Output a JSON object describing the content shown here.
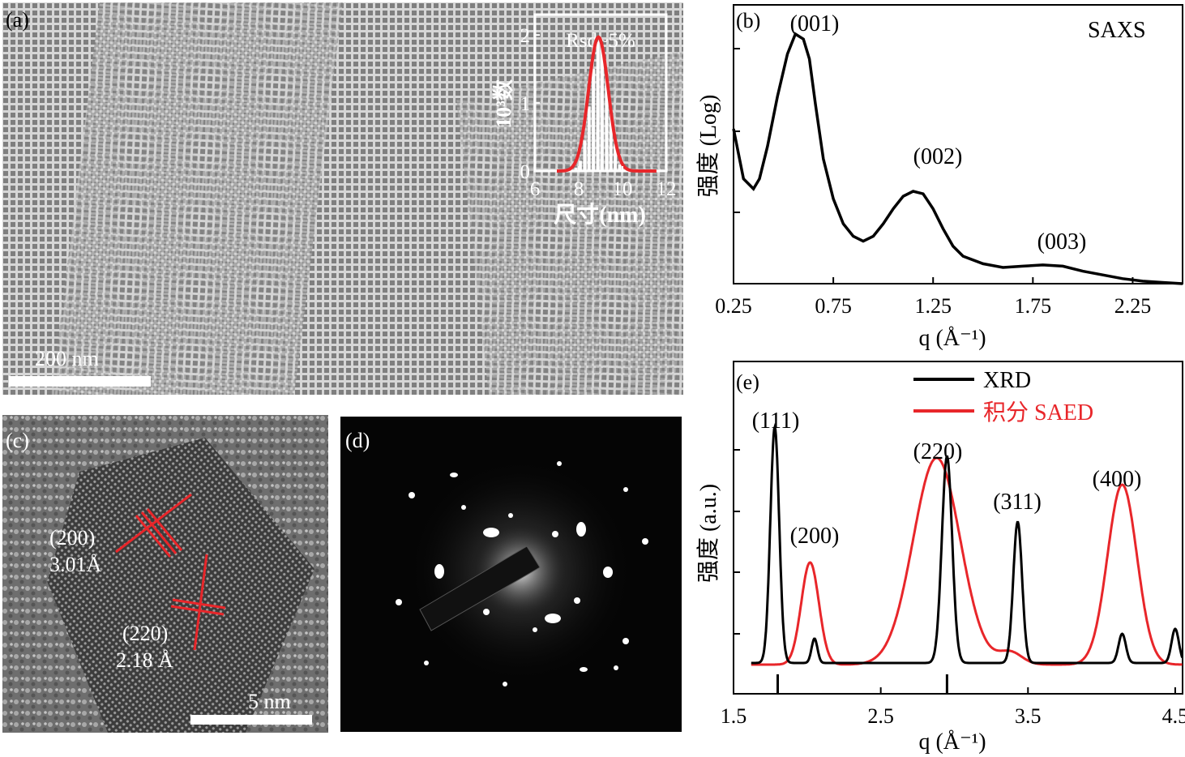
{
  "panels": {
    "a": {
      "label": "(a)",
      "scale_bar": "200 nm",
      "inset": {
        "annotation": "Rsd~5%",
        "ylabel": "10³数",
        "xlabel": "尺寸(nm)",
        "xticks": [
          "6",
          "8",
          "10",
          "12"
        ],
        "yticks": [
          "0",
          "1",
          "2"
        ]
      }
    },
    "b": {
      "label": "(b)",
      "title": "SAXS",
      "ylabel": "强度 (Log)",
      "xlabel": "q (Å⁻¹)",
      "xticks": [
        "0.25",
        "0.75",
        "1.25",
        "1.75",
        "2.25"
      ],
      "peaks": [
        "(001)",
        "(002)",
        "(003)"
      ]
    },
    "c": {
      "label": "(c)",
      "spacing_1_plane": "(200)",
      "spacing_1_value": "3.01Å",
      "spacing_2_plane": "(220)",
      "spacing_2_value": "2.18 Å",
      "scale_bar": "5 nm"
    },
    "d": {
      "label": "(d)"
    },
    "e": {
      "label": "(e)",
      "ylabel": "强度 (a.u.)",
      "xlabel": "q (Å⁻¹)",
      "xticks": [
        "1.5",
        "2.5",
        "3.5",
        "4.5"
      ],
      "legend": [
        "XRD",
        "积分 SAED"
      ],
      "peaks": [
        "(111)",
        "(200)",
        "(220)",
        "(311)",
        "(400)"
      ]
    }
  },
  "colors": {
    "xrd": "#000000",
    "saed": "#e8262a",
    "accent": "#e8262a"
  },
  "chart_data": [
    {
      "type": "bar",
      "panel": "a-inset",
      "xlabel": "尺寸(nm)",
      "ylabel": "10³数",
      "xlim": [
        6,
        12
      ],
      "ylim": [
        0,
        2.3
      ],
      "annotation": "Rsd~5%",
      "bins": [
        7.8,
        8.0,
        8.2,
        8.4,
        8.6,
        8.8,
        9.0,
        9.2,
        9.4,
        9.6,
        9.8
      ],
      "values": [
        0.05,
        0.15,
        0.45,
        0.95,
        1.5,
        1.9,
        1.85,
        1.4,
        0.85,
        0.4,
        0.1
      ],
      "fit": {
        "type": "gaussian",
        "center": 8.9,
        "sigma": 0.45,
        "amplitude": 1.97,
        "color": "#e8262a"
      }
    },
    {
      "type": "line",
      "panel": "b",
      "title": "SAXS",
      "xlabel": "q (Å⁻¹)",
      "ylabel": "强度 (Log)",
      "xlim": [
        0.25,
        2.5
      ],
      "scale": "log",
      "series": [
        {
          "color": "#000000",
          "x": [
            0.25,
            0.3,
            0.35,
            0.38,
            0.42,
            0.47,
            0.52,
            0.56,
            0.6,
            0.63,
            0.66,
            0.7,
            0.75,
            0.8,
            0.85,
            0.9,
            0.95,
            1.0,
            1.05,
            1.1,
            1.15,
            1.2,
            1.25,
            1.3,
            1.35,
            1.4,
            1.5,
            1.6,
            1.7,
            1.8,
            1.9,
            2.0,
            2.1,
            2.2,
            2.3,
            2.4,
            2.5
          ],
          "y": [
            0.62,
            0.42,
            0.38,
            0.42,
            0.55,
            0.75,
            0.92,
            1.0,
            0.98,
            0.9,
            0.72,
            0.5,
            0.34,
            0.24,
            0.19,
            0.17,
            0.19,
            0.24,
            0.3,
            0.35,
            0.37,
            0.36,
            0.3,
            0.22,
            0.15,
            0.11,
            0.08,
            0.065,
            0.07,
            0.075,
            0.07,
            0.05,
            0.035,
            0.02,
            0.01,
            0.005,
            0.0
          ]
        }
      ],
      "peaks": [
        {
          "label": "(001)",
          "q": 0.63
        },
        {
          "label": "(002)",
          "q": 1.18
        },
        {
          "label": "(003)",
          "q": 1.8
        }
      ]
    },
    {
      "type": "line",
      "panel": "e",
      "xlabel": "q (Å⁻¹)",
      "ylabel": "强度 (a.u.)",
      "xlim": [
        1.5,
        4.55
      ],
      "series": [
        {
          "name": "XRD",
          "color": "#000000",
          "peaks": [
            {
              "q": 1.78,
              "height": 0.97,
              "width": 0.03
            },
            {
              "q": 2.05,
              "height": 0.1,
              "width": 0.02
            },
            {
              "q": 2.95,
              "height": 0.85,
              "width": 0.035
            },
            {
              "q": 3.43,
              "height": 0.58,
              "width": 0.03
            },
            {
              "q": 4.14,
              "height": 0.12,
              "width": 0.025
            },
            {
              "q": 4.5,
              "height": 0.14,
              "width": 0.025
            }
          ]
        },
        {
          "name": "积分 SAED",
          "color": "#e8262a",
          "peaks": [
            {
              "q": 2.02,
              "height": 0.42,
              "width": 0.06
            },
            {
              "q": 2.88,
              "height": 0.85,
              "width": 0.16
            },
            {
              "q": 3.38,
              "height": 0.05,
              "width": 0.08
            },
            {
              "q": 4.14,
              "height": 0.74,
              "width": 0.1
            }
          ]
        }
      ],
      "reference_ticks": [
        1.8,
        2.95
      ],
      "peaks": [
        {
          "label": "(111)",
          "q": 1.78
        },
        {
          "label": "(200)",
          "q": 2.02
        },
        {
          "label": "(220)",
          "q": 2.92
        },
        {
          "label": "(311)",
          "q": 3.43
        },
        {
          "label": "(400)",
          "q": 4.14
        }
      ]
    }
  ]
}
